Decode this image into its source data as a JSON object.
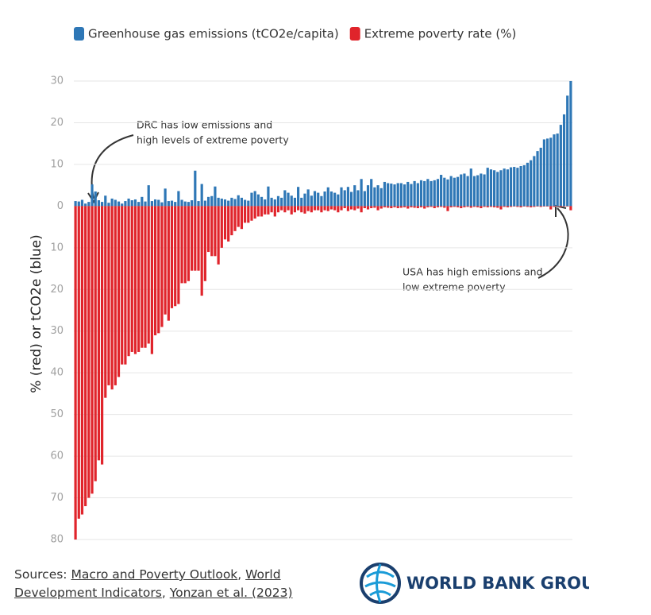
{
  "chart_data": {
    "type": "bar",
    "y_label": "% (red) or tCO2e (blue)",
    "categories": [
      null,
      null,
      null,
      null,
      null,
      null,
      null,
      null,
      null,
      null,
      null,
      null,
      null,
      null,
      null,
      null,
      null,
      null,
      null,
      null,
      null,
      null,
      null,
      null,
      null,
      null,
      null,
      null,
      null,
      null,
      null,
      null,
      null,
      null,
      null,
      null,
      null,
      null,
      null,
      null,
      null,
      null,
      null,
      null,
      null,
      null,
      null,
      null,
      null,
      null,
      null,
      null,
      null,
      null,
      null,
      null,
      null,
      null,
      null,
      null,
      null,
      null,
      null,
      null,
      null,
      null,
      null,
      null,
      null,
      null,
      null,
      null,
      null,
      null,
      null,
      null,
      null,
      null,
      null,
      null,
      null,
      null,
      null,
      null,
      null,
      null,
      null,
      null,
      null,
      null,
      null,
      null,
      null,
      null,
      null,
      null,
      null,
      null,
      null,
      null,
      null,
      null,
      null,
      null,
      null,
      null,
      null,
      null,
      null,
      null,
      null,
      null,
      null,
      null,
      null,
      null,
      null,
      null,
      null,
      null,
      null,
      null,
      null,
      null,
      null,
      null,
      null,
      null,
      null,
      null,
      null,
      null,
      null,
      null,
      null,
      null,
      null,
      null,
      null,
      null,
      null,
      null,
      null,
      null,
      null,
      null,
      null,
      null,
      null,
      null
    ],
    "series": [
      {
        "name": "Greenhouse gas emissions (tCO2e/capita)",
        "color": "#2e77b6",
        "values": [
          1.2,
          1.1,
          1.5,
          0.6,
          1.0,
          5.2,
          3.5,
          1.4,
          1.0,
          2.5,
          0.8,
          1.8,
          1.5,
          1.1,
          0.6,
          1.2,
          1.8,
          1.4,
          1.6,
          1.0,
          2.2,
          1.1,
          5.0,
          1.2,
          1.6,
          1.5,
          0.9,
          4.2,
          1.2,
          1.3,
          1.0,
          3.6,
          1.5,
          1.1,
          1.0,
          1.4,
          8.5,
          1.2,
          5.3,
          1.3,
          2.2,
          2.4,
          4.7,
          2.0,
          1.8,
          1.6,
          1.3,
          2.0,
          1.7,
          2.6,
          2.0,
          1.5,
          1.3,
          3.2,
          3.6,
          2.8,
          2.2,
          1.6,
          4.7,
          2.0,
          1.6,
          2.4,
          2.0,
          3.8,
          3.2,
          2.5,
          2.0,
          4.6,
          2.0,
          3.0,
          4.0,
          2.5,
          3.6,
          3.2,
          2.4,
          3.5,
          4.5,
          3.5,
          3.2,
          2.8,
          4.5,
          3.8,
          4.6,
          3.4,
          5.0,
          3.8,
          6.5,
          3.6,
          5.0,
          6.5,
          4.5,
          5.0,
          4.3,
          5.8,
          5.5,
          5.4,
          5.2,
          5.5,
          5.5,
          5.2,
          5.8,
          5.3,
          6.0,
          5.5,
          6.2,
          6.0,
          6.5,
          6.0,
          6.2,
          6.5,
          7.5,
          6.8,
          6.4,
          7.2,
          6.8,
          7.0,
          7.6,
          7.8,
          7.2,
          9.0,
          7.2,
          7.4,
          7.8,
          7.6,
          9.2,
          8.8,
          8.6,
          8.2,
          8.6,
          9.0,
          8.8,
          9.3,
          9.4,
          9.2,
          9.6,
          9.8,
          10.4,
          11.0,
          12.0,
          13.2,
          14.0,
          16.0,
          16.2,
          16.4,
          17.2,
          17.4,
          19.5,
          22.0,
          26.5,
          30.0
        ]
      },
      {
        "name": "Extreme poverty rate (%)",
        "color": "#e0242b",
        "values": [
          -80,
          -75,
          -74,
          -72,
          -70,
          -69,
          -66,
          -61,
          -62,
          -46,
          -43,
          -44,
          -43,
          -41,
          -38,
          -38,
          -36,
          -35,
          -35.5,
          -35,
          -34,
          -34,
          -33,
          -35.5,
          -31,
          -30.5,
          -29,
          -26,
          -27.5,
          -24.5,
          -24,
          -23.5,
          -18.5,
          -18.5,
          -18,
          -15.5,
          -15.5,
          -15.5,
          -21.5,
          -18,
          -11,
          -12,
          -12,
          -14,
          -10,
          -8,
          -8.5,
          -7,
          -6,
          -5,
          -5.5,
          -4,
          -4,
          -3.5,
          -3,
          -2.5,
          -2.5,
          -2,
          -2,
          -1.5,
          -2.5,
          -1.5,
          -1,
          -1.5,
          -1,
          -2,
          -1.5,
          -1,
          -1.5,
          -1.8,
          -1.2,
          -1.5,
          -1,
          -1,
          -1.5,
          -1,
          -1.2,
          -0.8,
          -1,
          -1.5,
          -1,
          -0.5,
          -1.2,
          -0.8,
          -1,
          -0.6,
          -1.5,
          -0.5,
          -0.8,
          -0.5,
          -0.4,
          -1,
          -0.6,
          -0.3,
          -0.4,
          -0.5,
          -0.3,
          -0.5,
          -0.4,
          -0.3,
          -0.6,
          -0.3,
          -0.4,
          -0.5,
          -0.3,
          -0.6,
          -0.3,
          -0.2,
          -0.5,
          -0.3,
          -0.2,
          -0.4,
          -1.2,
          -0.3,
          -0.2,
          -0.3,
          -0.5,
          -0.3,
          -0.2,
          -0.4,
          -0.2,
          -0.3,
          -0.5,
          -0.2,
          -0.3,
          -0.2,
          -0.3,
          -0.4,
          -0.8,
          -0.2,
          -0.3,
          -0.2,
          -0.1,
          -0.2,
          -0.3,
          -0.1,
          -0.2,
          -0.3,
          -0.2,
          -0.1,
          -0.2,
          -0.1,
          -0.1,
          -0.8,
          -0.2,
          -0.1,
          -0.2,
          -0.1,
          -0.1,
          -1.0
        ]
      }
    ],
    "ylim": [
      -80,
      30
    ],
    "yticks": [
      30,
      20,
      10,
      0,
      {
        "value": -10,
        "label": "10"
      },
      {
        "value": -20,
        "label": "20"
      },
      {
        "value": -30,
        "label": "30"
      },
      {
        "value": -40,
        "label": "40"
      },
      {
        "value": -50,
        "label": "50"
      },
      {
        "value": -60,
        "label": "60"
      },
      {
        "value": -70,
        "label": "70"
      },
      {
        "value": -80,
        "label": "80"
      }
    ],
    "grid": true,
    "annotations": [
      {
        "lines": [
          "DRC has low emissions and",
          "high levels of extreme poverty"
        ]
      },
      {
        "lines": [
          "USA has high emissions and",
          "low extreme poverty"
        ]
      }
    ]
  },
  "footer": {
    "prefix": "Sources: ",
    "links": [
      "Macro and Poverty Outlook",
      "World Development Indicators",
      "Yonzan et al. (2023)"
    ],
    "separator": ", ",
    "logo": "WORLD BANK GROUP"
  }
}
